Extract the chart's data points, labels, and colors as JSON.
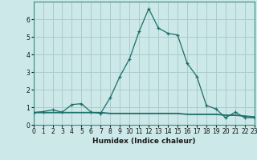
{
  "title": "",
  "xlabel": "Humidex (Indice chaleur)",
  "ylabel": "",
  "background_color": "#cce8e8",
  "grid_color": "#aacccc",
  "line_color": "#1a6e6a",
  "x": [
    0,
    1,
    2,
    3,
    4,
    5,
    6,
    7,
    8,
    9,
    10,
    11,
    12,
    13,
    14,
    15,
    16,
    17,
    18,
    19,
    20,
    21,
    22,
    23
  ],
  "y_main": [
    0.7,
    0.75,
    0.85,
    0.72,
    1.15,
    1.2,
    0.72,
    0.65,
    1.55,
    2.75,
    3.75,
    5.3,
    6.6,
    5.5,
    5.2,
    5.1,
    3.5,
    2.75,
    1.1,
    0.9,
    0.4,
    0.72,
    0.4,
    0.4
  ],
  "y_flat1": [
    0.68,
    0.68,
    0.68,
    0.68,
    0.68,
    0.68,
    0.68,
    0.68,
    0.63,
    0.63,
    0.63,
    0.63,
    0.63,
    0.63,
    0.63,
    0.63,
    0.58,
    0.58,
    0.58,
    0.58,
    0.53,
    0.53,
    0.48,
    0.43
  ],
  "y_flat2": [
    0.71,
    0.71,
    0.71,
    0.71,
    0.71,
    0.71,
    0.71,
    0.71,
    0.66,
    0.66,
    0.66,
    0.66,
    0.66,
    0.66,
    0.66,
    0.66,
    0.61,
    0.61,
    0.61,
    0.61,
    0.56,
    0.56,
    0.51,
    0.46
  ],
  "xlim": [
    0,
    23
  ],
  "ylim": [
    0,
    7
  ],
  "yticks": [
    0,
    1,
    2,
    3,
    4,
    5,
    6
  ],
  "xticks": [
    0,
    1,
    2,
    3,
    4,
    5,
    6,
    7,
    8,
    9,
    10,
    11,
    12,
    13,
    14,
    15,
    16,
    17,
    18,
    19,
    20,
    21,
    22,
    23
  ],
  "tick_fontsize": 5.5,
  "xlabel_fontsize": 6.5
}
